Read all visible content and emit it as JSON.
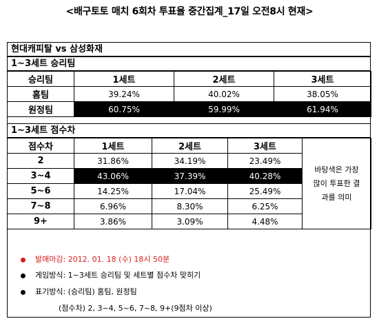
{
  "title": "<배구토토 매치 6회차 투표율 중간집계_17일 오전8시 현재>",
  "match": "현대캐피탈 vs 삼성화재",
  "section1": {
    "heading": "1~3세트 승리팀",
    "headers": [
      "승리팀",
      "1세트",
      "2세트",
      "3세트"
    ],
    "rows": [
      {
        "label": "홈팀",
        "values": [
          "39.24%",
          "40.02%",
          "38.05%"
        ],
        "highlight": false
      },
      {
        "label": "원정팀",
        "values": [
          "60.75%",
          "59.99%",
          "61.94%"
        ],
        "highlight": true
      }
    ]
  },
  "section2": {
    "heading": "1~3세트 점수차",
    "headers": [
      "점수차",
      "1세트",
      "2세트",
      "3세트"
    ],
    "rows": [
      {
        "label": "2",
        "values": [
          "31.86%",
          "34.19%",
          "23.49%"
        ],
        "highlight": false
      },
      {
        "label": "3~4",
        "values": [
          "43.06%",
          "37.39%",
          "40.28%"
        ],
        "highlight": true
      },
      {
        "label": "5~6",
        "values": [
          "14.25%",
          "17.04%",
          "25.49%"
        ],
        "highlight": false
      },
      {
        "label": "7~8",
        "values": [
          "6.96%",
          "8.30%",
          "6.25%"
        ],
        "highlight": false
      },
      {
        "label": "9+",
        "values": [
          "3.86%",
          "3.09%",
          "4.48%"
        ],
        "highlight": false
      }
    ],
    "note_lines": [
      "바탕색은 가장",
      "많이 투표한 결",
      "과를 의미"
    ]
  },
  "footer": {
    "deadline": "발매마감: 2012. 01. 18 (수) 18시 50분",
    "game_method": "게임방식: 1~3세트 승리팀 및 세트별 점수차 맞히기",
    "notation": "표기방식: (승리팀) 홈팀, 원정팀",
    "score_notation": "(점수차) 2, 3~4, 5~6, 7~8, 9+(9점차 이상)"
  },
  "colors": {
    "highlight_bg": "#000000",
    "highlight_text": "#ffffff",
    "deadline_text": "#d61e1e"
  }
}
